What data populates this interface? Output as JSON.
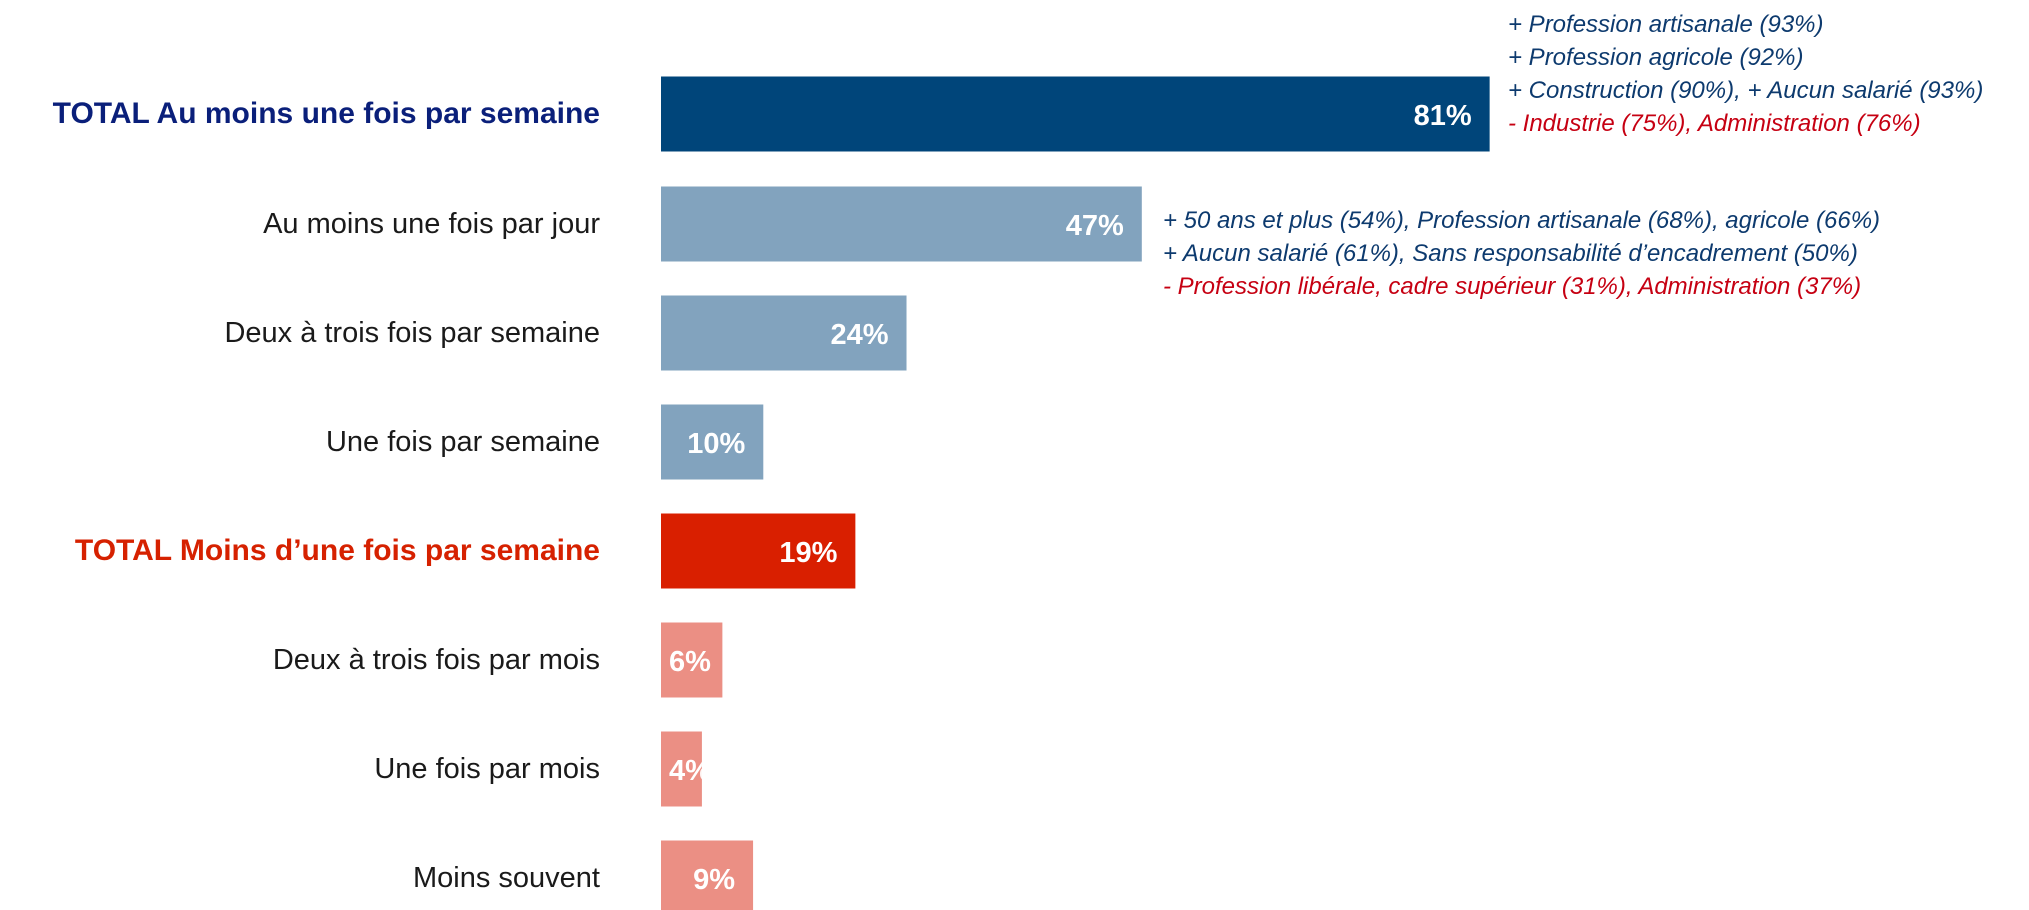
{
  "colors": {
    "total_up": "#00457a",
    "up_detail": "#82a3be",
    "total_down": "#d91f00",
    "down_detail": "#eb8f84",
    "label_total_up": "#0a1f7a",
    "label_total_down": "#d62100",
    "annot_positive": "#0d3a6e",
    "annot_negative": "#c60012"
  },
  "chart_data": {
    "type": "bar",
    "orientation": "horizontal",
    "unit": "%",
    "categories": [
      "TOTAL Au moins une fois par semaine",
      "Au moins une fois par jour",
      "Deux à trois fois par semaine",
      "Une fois par semaine",
      "TOTAL Moins d’une fois par semaine",
      "Deux à trois fois par mois",
      "Une fois par mois",
      "Moins souvent"
    ],
    "values": [
      81,
      47,
      24,
      10,
      19,
      6,
      4,
      9
    ],
    "value_labels": [
      "81%",
      "47%",
      "24%",
      "10%",
      "19%",
      "6%",
      "4%",
      "9%"
    ],
    "bar_styles": [
      "total_up",
      "up_detail",
      "up_detail",
      "up_detail",
      "total_down",
      "down_detail",
      "down_detail",
      "down_detail"
    ],
    "title": "",
    "xlabel": "",
    "ylabel": "",
    "xlim": [
      0,
      100
    ],
    "grid": false,
    "legend": "none"
  },
  "annotations": {
    "total_up": [
      {
        "text": "+ Profession artisanale (93%)",
        "kind": "positive"
      },
      {
        "text": "+ Profession agricole (92%)",
        "kind": "positive"
      },
      {
        "text": "+ Construction (90%), + Aucun salarié (93%)",
        "kind": "positive"
      },
      {
        "text": "- Industrie (75%), Administration (76%)",
        "kind": "negative"
      }
    ],
    "daily": [
      {
        "text": "+ 50 ans et plus (54%), Profession artisanale (68%), agricole (66%)",
        "kind": "positive"
      },
      {
        "text": "+ Aucun salarié (61%), Sans responsabilité d’encadrement (50%)",
        "kind": "positive"
      },
      {
        "text": "- Profession libérale, cadre supérieur (31%), Administration  (37%)",
        "kind": "negative"
      }
    ]
  }
}
